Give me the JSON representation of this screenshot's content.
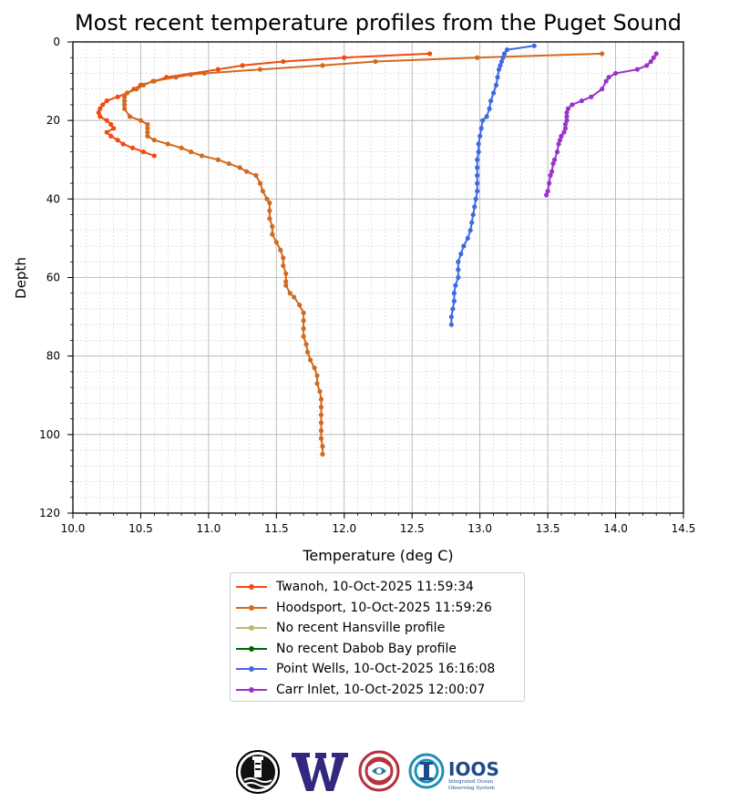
{
  "chart_data": {
    "type": "line",
    "title": "Most recent temperature profiles from the Puget Sound",
    "xlabel": "Temperature (deg C)",
    "ylabel": "Depth",
    "xlim": [
      10.0,
      14.5
    ],
    "ylim": [
      120,
      0
    ],
    "y_inverted": true,
    "xticks": [
      "10.0",
      "10.5",
      "11.0",
      "11.5",
      "12.0",
      "12.5",
      "13.0",
      "13.5",
      "14.0",
      "14.5"
    ],
    "yticks": [
      "0",
      "20",
      "40",
      "60",
      "80",
      "100",
      "120"
    ],
    "grid": true,
    "legend_position": "below",
    "series": [
      {
        "name": "Twanoh, 10-Oct-2025 11:59:34",
        "color": "#f04a0f",
        "points": [
          [
            12.63,
            3
          ],
          [
            12.0,
            4
          ],
          [
            11.55,
            5
          ],
          [
            11.25,
            6
          ],
          [
            11.07,
            7
          ],
          [
            10.69,
            9
          ],
          [
            10.6,
            10
          ],
          [
            10.5,
            11
          ],
          [
            10.45,
            12
          ],
          [
            10.4,
            13
          ],
          [
            10.33,
            14
          ],
          [
            10.25,
            15
          ],
          [
            10.22,
            16
          ],
          [
            10.2,
            17
          ],
          [
            10.19,
            18
          ],
          [
            10.2,
            19
          ],
          [
            10.25,
            20
          ],
          [
            10.28,
            21
          ],
          [
            10.3,
            22
          ],
          [
            10.25,
            23
          ],
          [
            10.28,
            24
          ],
          [
            10.33,
            25
          ],
          [
            10.37,
            26
          ],
          [
            10.44,
            27
          ],
          [
            10.52,
            28
          ],
          [
            10.6,
            29
          ]
        ]
      },
      {
        "name": "Hoodsport, 10-Oct-2025 11:59:26",
        "color": "#d2691e",
        "points": [
          [
            13.9,
            3
          ],
          [
            12.98,
            4
          ],
          [
            12.23,
            5
          ],
          [
            11.84,
            6
          ],
          [
            11.38,
            7
          ],
          [
            10.97,
            8
          ],
          [
            10.87,
            8.3
          ],
          [
            10.76,
            9
          ],
          [
            10.59,
            10
          ],
          [
            10.52,
            11
          ],
          [
            10.47,
            12
          ],
          [
            10.4,
            13
          ],
          [
            10.38,
            14
          ],
          [
            10.38,
            15
          ],
          [
            10.38,
            16
          ],
          [
            10.38,
            17
          ],
          [
            10.42,
            19
          ],
          [
            10.5,
            20
          ],
          [
            10.55,
            21
          ],
          [
            10.55,
            22
          ],
          [
            10.55,
            23
          ],
          [
            10.55,
            24
          ],
          [
            10.6,
            25
          ],
          [
            10.7,
            26
          ],
          [
            10.8,
            27
          ],
          [
            10.87,
            28
          ],
          [
            10.95,
            29
          ],
          [
            11.07,
            30
          ],
          [
            11.15,
            31
          ],
          [
            11.23,
            32
          ],
          [
            11.28,
            33
          ],
          [
            11.35,
            34
          ],
          [
            11.38,
            36
          ],
          [
            11.4,
            38
          ],
          [
            11.43,
            40
          ],
          [
            11.45,
            41
          ],
          [
            11.45,
            43
          ],
          [
            11.45,
            45
          ],
          [
            11.47,
            47
          ],
          [
            11.47,
            49
          ],
          [
            11.5,
            51
          ],
          [
            11.53,
            53
          ],
          [
            11.55,
            55
          ],
          [
            11.55,
            57
          ],
          [
            11.57,
            59
          ],
          [
            11.57,
            61
          ],
          [
            11.57,
            62
          ],
          [
            11.6,
            64
          ],
          [
            11.63,
            65
          ],
          [
            11.67,
            67
          ],
          [
            11.7,
            69
          ],
          [
            11.7,
            71
          ],
          [
            11.7,
            73
          ],
          [
            11.7,
            75
          ],
          [
            11.72,
            77
          ],
          [
            11.73,
            79
          ],
          [
            11.75,
            81
          ],
          [
            11.78,
            83
          ],
          [
            11.8,
            85
          ],
          [
            11.8,
            87
          ],
          [
            11.82,
            89
          ],
          [
            11.83,
            91
          ],
          [
            11.83,
            93
          ],
          [
            11.83,
            95
          ],
          [
            11.83,
            97
          ],
          [
            11.83,
            99
          ],
          [
            11.83,
            101
          ],
          [
            11.84,
            103
          ],
          [
            11.84,
            105
          ]
        ]
      },
      {
        "name": "No recent Hansville profile",
        "color": "#bdb76b",
        "points": []
      },
      {
        "name": "No recent Dabob Bay profile",
        "color": "#006400",
        "points": []
      },
      {
        "name": "Point Wells, 10-Oct-2025 16:16:08",
        "color": "#4169e1",
        "points": [
          [
            13.4,
            1
          ],
          [
            13.2,
            2
          ],
          [
            13.18,
            3
          ],
          [
            13.17,
            4
          ],
          [
            13.16,
            5
          ],
          [
            13.15,
            6
          ],
          [
            13.14,
            7
          ],
          [
            13.13,
            9
          ],
          [
            13.12,
            11
          ],
          [
            13.1,
            13
          ],
          [
            13.08,
            15
          ],
          [
            13.07,
            17
          ],
          [
            13.05,
            19
          ],
          [
            13.02,
            20
          ],
          [
            13.01,
            22
          ],
          [
            13.0,
            24
          ],
          [
            12.99,
            26
          ],
          [
            12.99,
            28
          ],
          [
            12.98,
            30
          ],
          [
            12.98,
            32
          ],
          [
            12.98,
            34
          ],
          [
            12.98,
            36
          ],
          [
            12.98,
            38
          ],
          [
            12.97,
            40
          ],
          [
            12.96,
            42
          ],
          [
            12.95,
            44
          ],
          [
            12.94,
            46
          ],
          [
            12.93,
            48
          ],
          [
            12.91,
            50
          ],
          [
            12.88,
            52
          ],
          [
            12.86,
            54
          ],
          [
            12.84,
            56
          ],
          [
            12.84,
            58
          ],
          [
            12.84,
            60
          ],
          [
            12.82,
            62
          ],
          [
            12.81,
            64
          ],
          [
            12.81,
            66
          ],
          [
            12.8,
            68
          ],
          [
            12.79,
            70
          ],
          [
            12.79,
            72
          ]
        ]
      },
      {
        "name": "Carr Inlet, 10-Oct-2025 12:00:07",
        "color": "#9932cc",
        "points": [
          [
            14.3,
            3
          ],
          [
            14.28,
            4
          ],
          [
            14.26,
            5
          ],
          [
            14.23,
            6
          ],
          [
            14.16,
            7
          ],
          [
            14.0,
            8
          ],
          [
            13.95,
            9
          ],
          [
            13.93,
            10
          ],
          [
            13.9,
            12
          ],
          [
            13.82,
            14
          ],
          [
            13.75,
            15
          ],
          [
            13.68,
            16
          ],
          [
            13.65,
            17
          ],
          [
            13.64,
            18
          ],
          [
            13.64,
            19
          ],
          [
            13.64,
            20
          ],
          [
            13.63,
            21
          ],
          [
            13.63,
            22
          ],
          [
            13.62,
            23
          ],
          [
            13.6,
            24
          ],
          [
            13.59,
            25
          ],
          [
            13.58,
            26
          ],
          [
            13.57,
            28
          ],
          [
            13.55,
            30
          ],
          [
            13.54,
            31
          ],
          [
            13.53,
            33
          ],
          [
            13.52,
            34
          ],
          [
            13.51,
            36
          ],
          [
            13.5,
            38
          ],
          [
            13.49,
            39
          ]
        ]
      }
    ]
  },
  "logos": [
    {
      "name": "nanoos-lighthouse-logo",
      "icon": "lighthouse-seal"
    },
    {
      "name": "uw-w-logo",
      "icon": "w-letter"
    },
    {
      "name": "salish-knot-logo",
      "icon": "knot-seal"
    },
    {
      "name": "ioos-logo",
      "icon": "ioos-mark",
      "text": "IOOS",
      "subtext": [
        "Integrated Ocean",
        "Observing System"
      ]
    }
  ]
}
